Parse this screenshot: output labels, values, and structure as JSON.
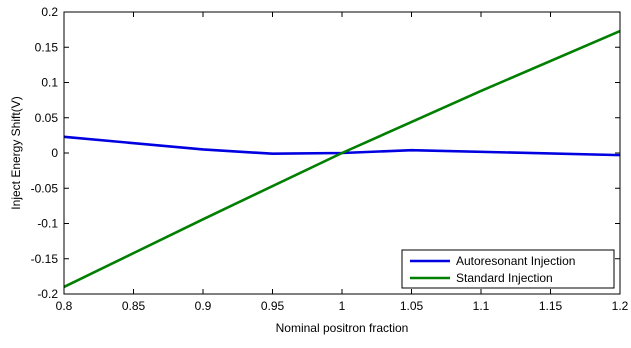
{
  "chart_data": {
    "type": "line",
    "title": "",
    "xlabel": "Nominal positron fraction",
    "ylabel": "Inject Energy Shift(V)",
    "xlim": [
      0.8,
      1.2
    ],
    "ylim": [
      -0.2,
      0.2
    ],
    "xticks": [
      0.8,
      0.85,
      0.9,
      0.95,
      1,
      1.05,
      1.1,
      1.15,
      1.2
    ],
    "yticks": [
      -0.2,
      -0.15,
      -0.1,
      -0.05,
      0,
      0.05,
      0.1,
      0.15,
      0.2
    ],
    "xtick_labels": [
      "0.8",
      "0.85",
      "0.9",
      "0.95",
      "1",
      "1.05",
      "1.1",
      "1.15",
      "1.2"
    ],
    "ytick_labels": [
      "-0.2",
      "-0.15",
      "-0.1",
      "-0.05",
      "0",
      "0.05",
      "0.1",
      "0.15",
      "0.2"
    ],
    "grid": false,
    "legend_position": "bottom-right",
    "series": [
      {
        "name": "Autoresonant Injection",
        "color": "#0000e0",
        "x": [
          0.8,
          0.9,
          0.95,
          1.0,
          1.05,
          1.2
        ],
        "y": [
          0.023,
          0.005,
          -0.001,
          0.0,
          0.004,
          -0.003
        ]
      },
      {
        "name": "Standard Injection",
        "color": "#007f00",
        "x": [
          0.8,
          0.9,
          1.0,
          1.1,
          1.2
        ],
        "y": [
          -0.19,
          -0.094,
          0.0,
          0.088,
          0.173
        ]
      }
    ]
  }
}
